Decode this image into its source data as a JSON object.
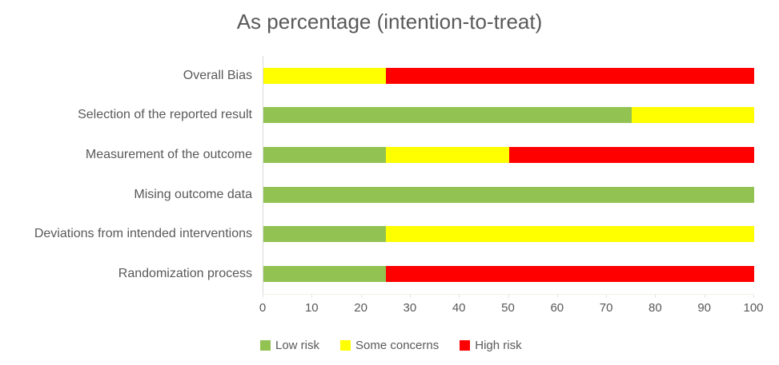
{
  "title": "As percentage (intention-to-treat)",
  "colors": {
    "low_risk": "#92C352",
    "some_concerns": "#FFFF00",
    "high_risk": "#FF0000",
    "text": "#595959",
    "axis_line": "#D9D9D9"
  },
  "chart_data": {
    "type": "bar",
    "orientation": "horizontal",
    "stacked": true,
    "title": "As percentage (intention-to-treat)",
    "categories": [
      "Overall Bias",
      "Selection of the reported result",
      "Measurement of the outcome",
      "Mising outcome data",
      "Deviations from intended interventions",
      "Randomization process"
    ],
    "series": [
      {
        "name": "Low risk",
        "color": "#92C352",
        "values": [
          0,
          75,
          25,
          100,
          25,
          25
        ]
      },
      {
        "name": "Some concerns",
        "color": "#FFFF00",
        "values": [
          25,
          25,
          25,
          0,
          75,
          0
        ]
      },
      {
        "name": "High risk",
        "color": "#FF0000",
        "values": [
          75,
          0,
          50,
          0,
          0,
          75
        ]
      }
    ],
    "xlabel": "",
    "ylabel": "",
    "xlim": [
      0,
      100
    ],
    "xticks": [
      0,
      10,
      20,
      30,
      40,
      50,
      60,
      70,
      80,
      90,
      100
    ],
    "grid": false,
    "legend_position": "bottom"
  }
}
